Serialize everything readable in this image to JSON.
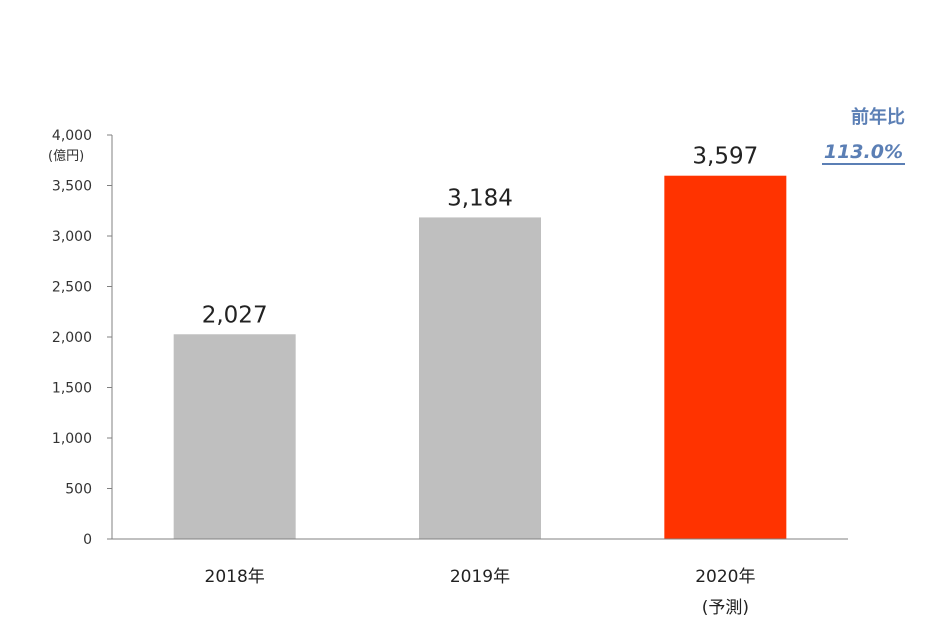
{
  "chart_data": {
    "type": "bar",
    "categories": [
      "2018年",
      "2019年",
      "2020年"
    ],
    "category_sublabels": [
      "",
      "",
      "(予測)"
    ],
    "values": [
      2027,
      3184,
      3597
    ],
    "data_labels": [
      "2,027",
      "3,184",
      "3,597"
    ],
    "bar_colors": [
      "#bfbfbf",
      "#bfbfbf",
      "#ff3300"
    ],
    "title": "",
    "xlabel": "",
    "ylabel": "",
    "yunit": "(億円)",
    "ylim": [
      0,
      4000
    ],
    "yticks": [
      0,
      500,
      1000,
      1500,
      2000,
      2500,
      3000,
      3500,
      4000
    ],
    "ytick_labels": [
      "0",
      "500",
      "1,000",
      "1,500",
      "2,000",
      "2,500",
      "3,000",
      "3,500",
      "4,000"
    ],
    "grid": false,
    "legend": "none"
  },
  "annotation": {
    "label": "前年比",
    "value": "113.0%",
    "color": "#5b7fb5"
  }
}
